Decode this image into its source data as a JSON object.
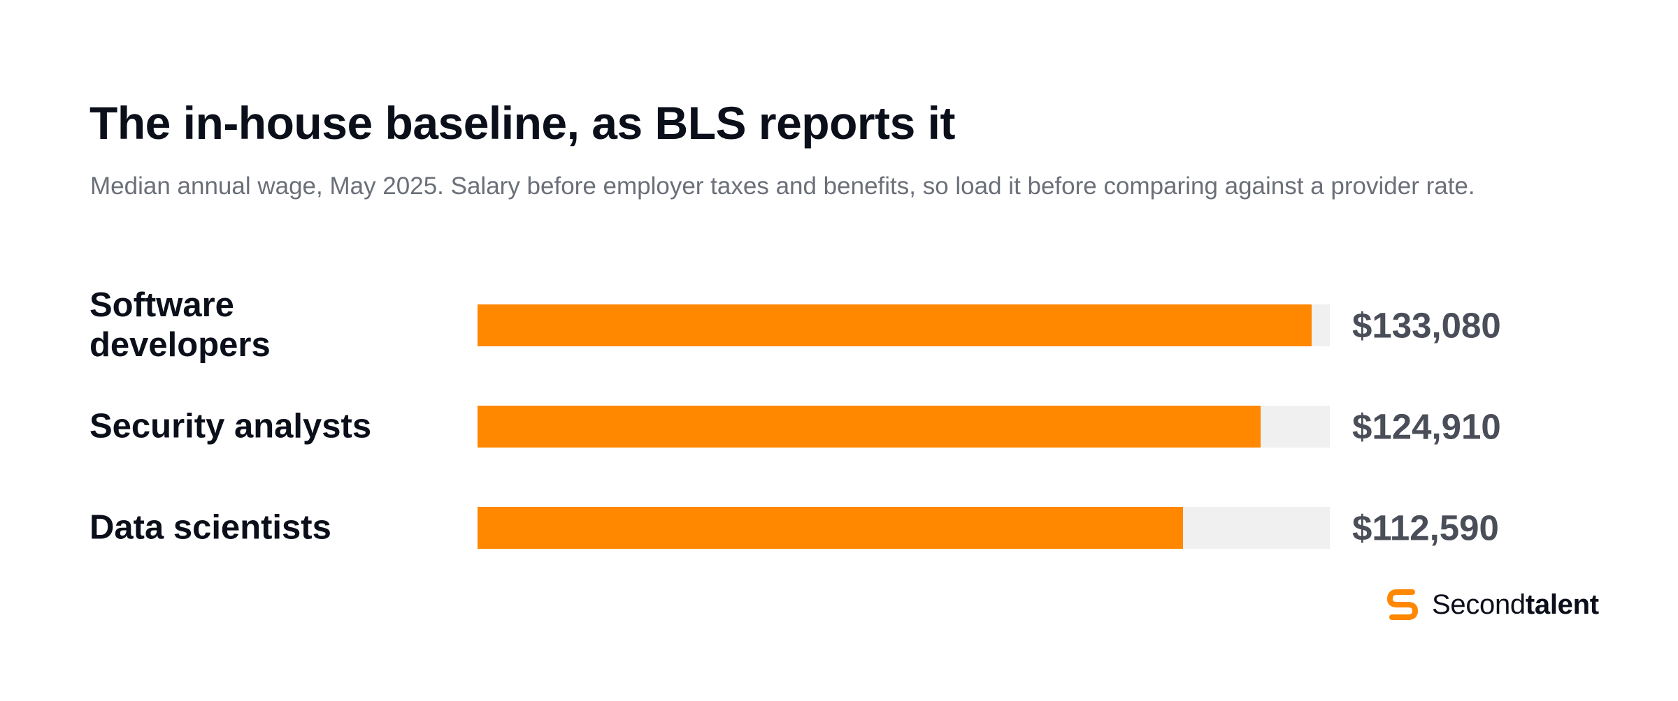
{
  "chart_data": {
    "type": "bar",
    "orientation": "horizontal",
    "title": "The in-house baseline, as BLS reports it",
    "subtitle": "Median annual wage, May 2025. Salary before employer taxes and benefits, so load it before comparing against a provider rate.",
    "xlim": [
      0,
      136000
    ],
    "grid": false,
    "categories": [
      "Software developers",
      "Security analysts",
      "Data scientists"
    ],
    "values": [
      133080,
      124910,
      112590
    ],
    "value_labels": [
      "$133,080",
      "$124,910",
      "$112,590"
    ]
  },
  "colors": {
    "bar": "#ff8800",
    "track": "#eff0ef",
    "title": "#0b0f1a",
    "subtitle": "#6b6f78",
    "value_label": "#4a4e58",
    "brand_accent": "#ff8800"
  },
  "brand": {
    "name_regular": "Second",
    "name_bold": "talent",
    "logo_icon": "secondtalent-s-logo-icon"
  }
}
